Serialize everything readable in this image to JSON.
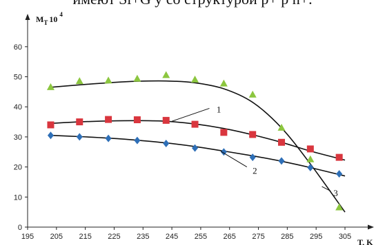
{
  "header": {
    "cut_text": "имеют Si+G у со структурой p+ p n+."
  },
  "chart_data": {
    "type": "scatter",
    "y_axis_label": "M",
    "y_axis_label_sub": "T",
    "y_axis_label_tail": "10",
    "y_axis_label_exp": "4",
    "x_axis_label": "T, K",
    "xlim": [
      195,
      305
    ],
    "ylim": [
      0,
      65
    ],
    "x_ticks": [
      195,
      205,
      215,
      225,
      235,
      245,
      255,
      265,
      275,
      285,
      295,
      305
    ],
    "y_ticks": [
      0,
      10,
      20,
      30,
      40,
      50,
      60
    ],
    "grid": false,
    "legend": "none",
    "series": [
      {
        "callout": "1",
        "marker": "square",
        "color": "#d9363e",
        "points": [
          [
            203,
            34
          ],
          [
            213,
            35
          ],
          [
            223,
            35.8
          ],
          [
            233,
            35.7
          ],
          [
            243,
            35.5
          ],
          [
            253,
            34.2
          ],
          [
            263,
            31.5
          ],
          [
            273,
            30.8
          ],
          [
            283,
            28.2
          ],
          [
            293,
            26
          ],
          [
            303,
            23.2
          ]
        ],
        "fit": [
          [
            203,
            34.5
          ],
          [
            213,
            35
          ],
          [
            223,
            35.3
          ],
          [
            233,
            35.4
          ],
          [
            243,
            35.2
          ],
          [
            253,
            34.3
          ],
          [
            263,
            32.8
          ],
          [
            273,
            30.7
          ],
          [
            283,
            28.2
          ],
          [
            293,
            25.3
          ],
          [
            305,
            22.3
          ]
        ]
      },
      {
        "callout": "2",
        "marker": "diamond",
        "color": "#2e6fb7",
        "points": [
          [
            203,
            30.5
          ],
          [
            213,
            30
          ],
          [
            223,
            29.5
          ],
          [
            233,
            28.8
          ],
          [
            243,
            27.8
          ],
          [
            253,
            26.3
          ],
          [
            263,
            25
          ],
          [
            273,
            23.2
          ],
          [
            283,
            22
          ],
          [
            293,
            19.8
          ],
          [
            303,
            17.7
          ]
        ],
        "fit": [
          [
            203,
            30.5
          ],
          [
            213,
            30.1
          ],
          [
            223,
            29.6
          ],
          [
            233,
            28.9
          ],
          [
            243,
            28
          ],
          [
            253,
            26.8
          ],
          [
            263,
            25.3
          ],
          [
            273,
            23.7
          ],
          [
            283,
            21.9
          ],
          [
            293,
            19.8
          ],
          [
            305,
            17
          ]
        ]
      },
      {
        "callout": "3",
        "marker": "triangle",
        "color": "#8cc63f",
        "points": [
          [
            203,
            46.5
          ],
          [
            213,
            48.5
          ],
          [
            223,
            48.7
          ],
          [
            233,
            49.3
          ],
          [
            243,
            50.5
          ],
          [
            253,
            49
          ],
          [
            263,
            47.7
          ],
          [
            273,
            44
          ],
          [
            283,
            33
          ],
          [
            293,
            22.5
          ],
          [
            303,
            6.5
          ]
        ],
        "fit": [
          [
            203,
            46.5
          ],
          [
            213,
            47.3
          ],
          [
            223,
            48
          ],
          [
            233,
            48.5
          ],
          [
            243,
            48.6
          ],
          [
            253,
            48
          ],
          [
            263,
            46
          ],
          [
            273,
            41.5
          ],
          [
            283,
            33
          ],
          [
            293,
            21
          ],
          [
            305,
            5
          ]
        ]
      }
    ]
  }
}
